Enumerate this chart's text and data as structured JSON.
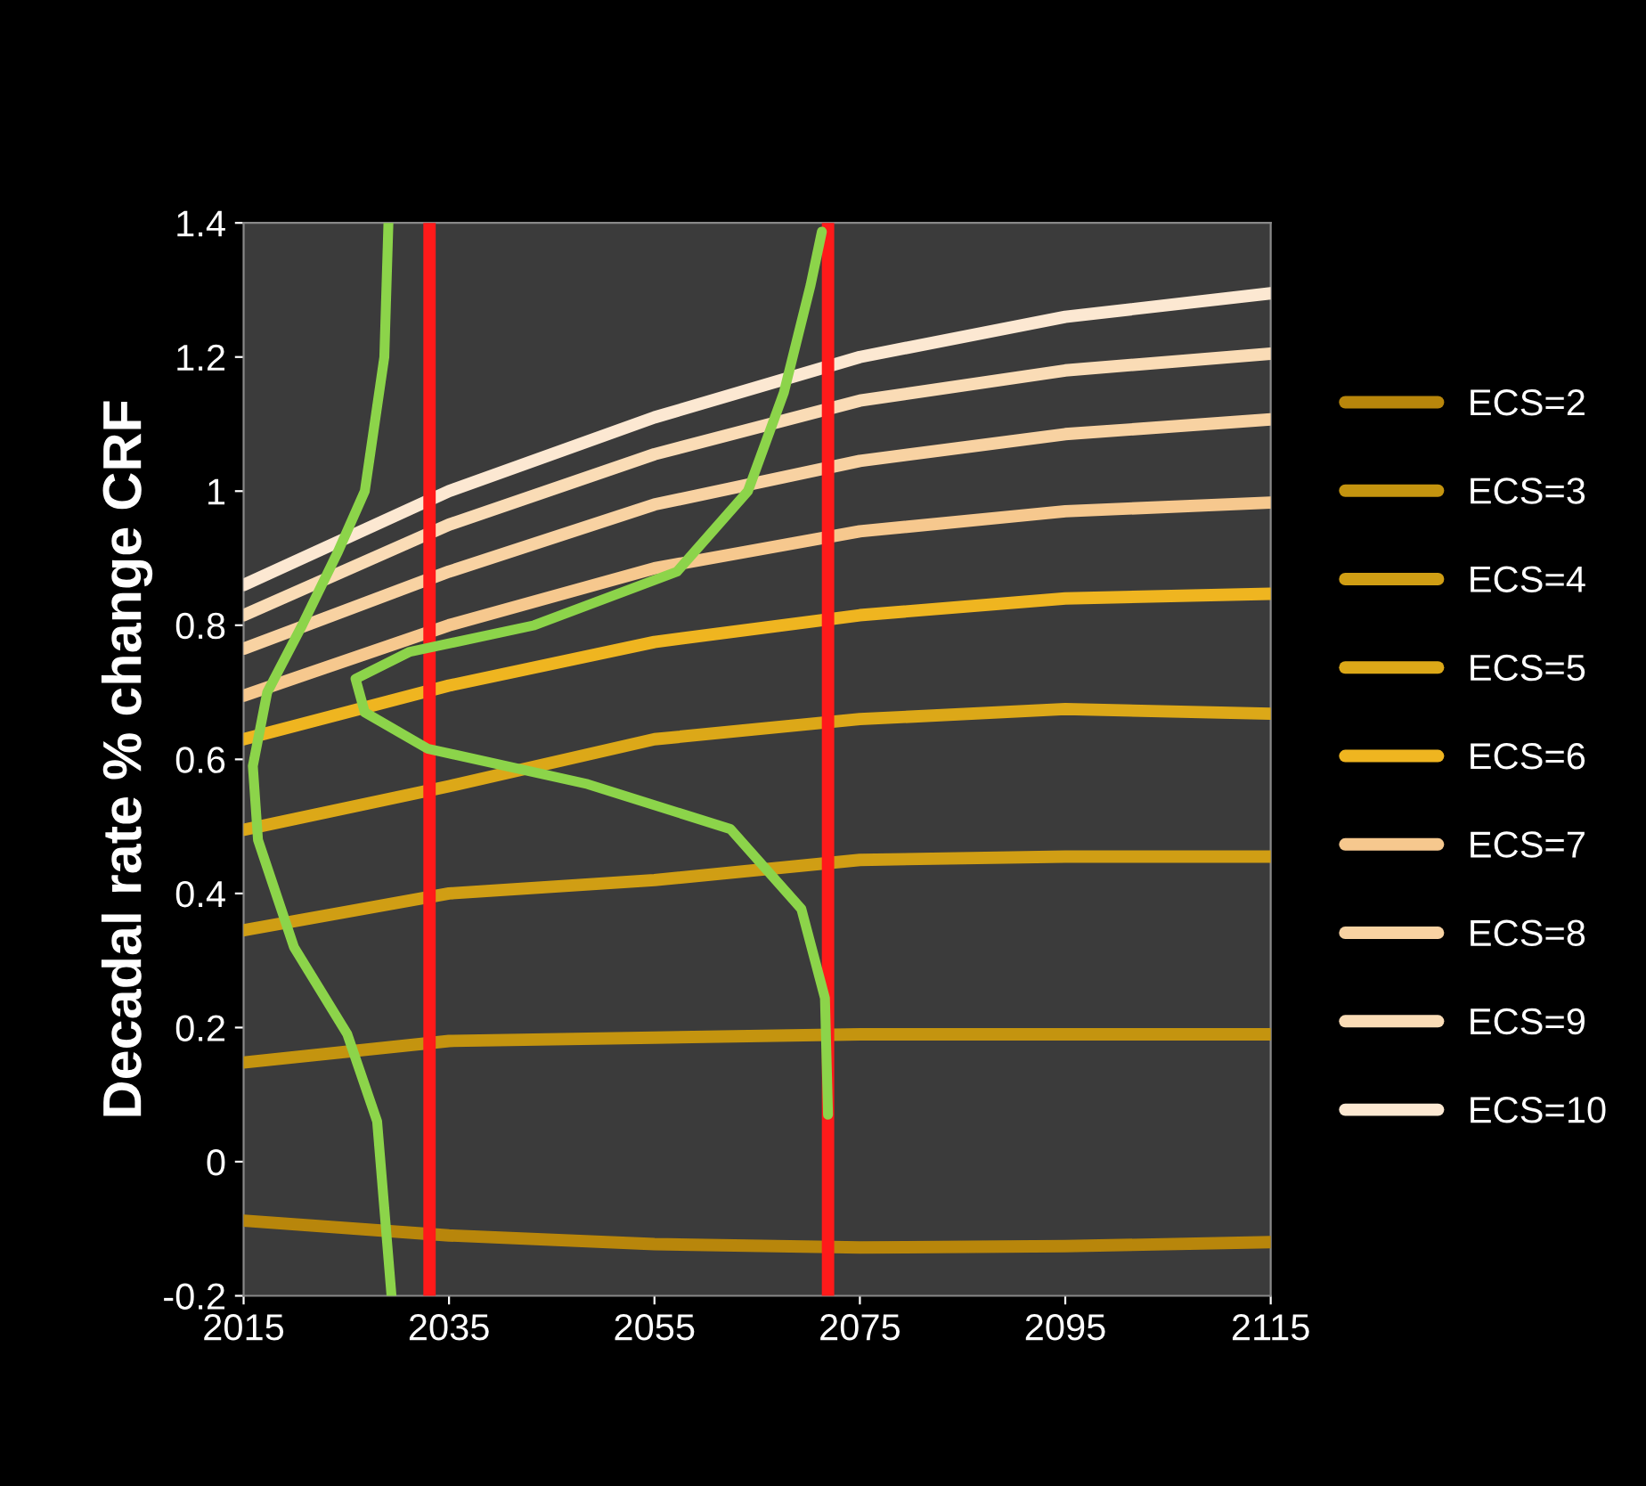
{
  "chart_data": {
    "type": "line",
    "ylabel": "Decadal rate % change CRF",
    "x": [
      2015,
      2035,
      2055,
      2075,
      2095,
      2115
    ],
    "xlim": [
      2015,
      2115
    ],
    "xticks": [
      2015,
      2035,
      2055,
      2075,
      2095,
      2115
    ],
    "ylim": [
      -0.2,
      1.4
    ],
    "yticks": [
      -0.2,
      0,
      0.2,
      0.4,
      0.6,
      0.8,
      1,
      1.2,
      1.4
    ],
    "grid": false,
    "legend": "right",
    "marker": "none",
    "line_style": "solid",
    "series": [
      {
        "name": "ECS=2",
        "color": "#b8860b",
        "values": [
          -0.088,
          -0.11,
          -0.123,
          -0.128,
          -0.126,
          -0.12
        ]
      },
      {
        "name": "ECS=3",
        "color": "#c4940f",
        "values": [
          0.148,
          0.18,
          0.185,
          0.19,
          0.19,
          0.19
        ]
      },
      {
        "name": "ECS=4",
        "color": "#d09e14",
        "values": [
          0.345,
          0.4,
          0.42,
          0.45,
          0.455,
          0.455
        ]
      },
      {
        "name": "ECS=5",
        "color": "#dca818",
        "values": [
          0.495,
          0.56,
          0.63,
          0.66,
          0.675,
          0.668
        ]
      },
      {
        "name": "ECS=6",
        "color": "#efb520",
        "values": [
          0.63,
          0.71,
          0.775,
          0.815,
          0.84,
          0.847
        ]
      },
      {
        "name": "ECS=7",
        "color": "#f6c88e",
        "values": [
          0.695,
          0.8,
          0.885,
          0.94,
          0.97,
          0.983
        ]
      },
      {
        "name": "ECS=8",
        "color": "#f8d2a2",
        "values": [
          0.765,
          0.88,
          0.98,
          1.045,
          1.085,
          1.107
        ]
      },
      {
        "name": "ECS=9",
        "color": "#fadcb6",
        "values": [
          0.815,
          0.95,
          1.055,
          1.135,
          1.18,
          1.205
        ]
      },
      {
        "name": "ECS=10",
        "color": "#fce8d2",
        "values": [
          0.86,
          1.0,
          1.11,
          1.2,
          1.26,
          1.295
        ]
      },
      {
        "color": "#8cd44a",
        "x": [
          2029.1,
          2028.7,
          2026.8,
          2024.2,
          2020.7,
          2017.3,
          2015.9,
          2016.4,
          2019.9,
          2025.1,
          2028.0,
          2029.4
        ],
        "values": [
          1.4,
          1.2,
          1.0,
          0.91,
          0.8,
          0.7,
          0.59,
          0.48,
          0.32,
          0.19,
          0.06,
          -0.2
        ]
      },
      {
        "color": "#8cd44a",
        "x": [
          2071.3,
          2070.2,
          2067.6,
          2064.1,
          2057.2,
          2043.3,
          2031.1,
          2025.9,
          2026.8,
          2032.9,
          2048.5,
          2062.4,
          2069.3,
          2071.6,
          2071.9
        ],
        "values": [
          1.387,
          1.307,
          1.147,
          1.0,
          0.88,
          0.8,
          0.76,
          0.72,
          0.67,
          0.616,
          0.563,
          0.496,
          0.377,
          0.244,
          0.07
        ]
      }
    ],
    "ref_lines": [
      {
        "axis": "x",
        "value": 2033.1,
        "color": "#ff1a1a"
      },
      {
        "axis": "x",
        "value": 2071.9,
        "color": "#ff1a1a"
      }
    ]
  }
}
